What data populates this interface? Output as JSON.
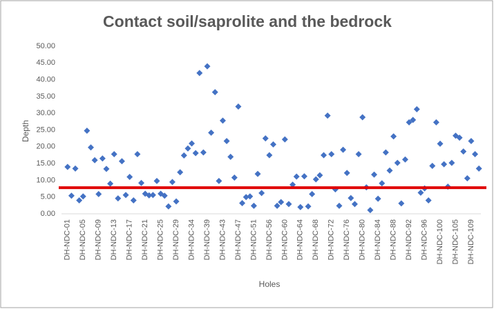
{
  "chart_data": {
    "type": "scatter",
    "title": "Contact soil/saprolite  and the bedrock",
    "x_label": "Holes",
    "y_label": "Depth",
    "categories": [
      "DH-NDC-01",
      null,
      null,
      null,
      "DH-NDC-05",
      null,
      null,
      null,
      "DH-NDC-09",
      null,
      null,
      null,
      "DH-NDC-13",
      null,
      null,
      null,
      "DH-NDC-17",
      null,
      null,
      null,
      "DH-NDC-21",
      null,
      null,
      null,
      "DH-NDC-25",
      null,
      null,
      null,
      "DH-NDC-29",
      null,
      null,
      null,
      "DH-NDC-34",
      null,
      null,
      null,
      "DH-NDC-39",
      null,
      null,
      null,
      "DH-NDC-43",
      null,
      null,
      null,
      "DH-NDC-47",
      null,
      null,
      null,
      "DH-NDC-51",
      null,
      null,
      null,
      "DH-NDC-56",
      null,
      null,
      null,
      "DH-NDC-60",
      null,
      null,
      null,
      "DH-NDC-64",
      null,
      null,
      null,
      "DH-NDC-68",
      null,
      null,
      null,
      "DH-NDC-72",
      null,
      null,
      null,
      "DH-NDC-76",
      null,
      null,
      null,
      "DH-NDC-80",
      null,
      null,
      null,
      "DH-NDC-84",
      null,
      null,
      null,
      "DH-NDC-88",
      null,
      null,
      null,
      "DH-NDC-92",
      null,
      null,
      null,
      "DH-NDC-96",
      null,
      null,
      null,
      "DH-NDC-100",
      null,
      null,
      null,
      "DH-NDC-105",
      null,
      null,
      null,
      "DH-NDC-109",
      null,
      null
    ],
    "values": [
      14.0,
      5.4,
      13.5,
      4.0,
      5.2,
      24.8,
      19.8,
      16.0,
      5.9,
      16.5,
      13.4,
      9.0,
      17.8,
      4.6,
      15.7,
      5.6,
      11.0,
      4.0,
      17.8,
      9.2,
      6.0,
      5.5,
      5.6,
      9.8,
      6.0,
      5.4,
      2.2,
      9.5,
      3.7,
      12.4,
      17.4,
      19.5,
      21.0,
      18.1,
      42.0,
      18.3,
      44.0,
      24.2,
      36.3,
      9.8,
      27.8,
      21.7,
      17.0,
      10.8,
      32.0,
      3.2,
      5.0,
      5.2,
      2.4,
      11.9,
      6.2,
      22.5,
      17.5,
      20.7,
      2.4,
      3.5,
      22.2,
      2.9,
      8.7,
      11.1,
      2.0,
      11.2,
      2.2,
      5.9,
      10.3,
      11.5,
      17.5,
      29.3,
      17.8,
      7.3,
      2.4,
      19.1,
      12.2,
      4.7,
      2.9,
      17.8,
      28.8,
      7.9,
      1.1,
      11.7,
      4.5,
      9.1,
      18.3,
      12.9,
      23.1,
      15.2,
      3.1,
      16.2,
      27.3,
      28.0,
      31.2,
      6.3,
      7.6,
      4.0,
      14.3,
      27.3,
      20.9,
      14.8,
      8.1,
      15.2,
      23.3,
      22.7,
      18.6,
      10.6,
      21.7,
      17.8,
      13.5
    ],
    "color": "#4472c4",
    "threshold": 7.8,
    "threshold_color": "#e00000",
    "ylim": [
      0,
      50
    ],
    "yticks": [
      {
        "value": 0,
        "label": "0.00"
      },
      {
        "value": 5,
        "label": "5.00"
      },
      {
        "value": 10,
        "label": "10.00"
      },
      {
        "value": 15,
        "label": "15.00"
      },
      {
        "value": 20,
        "label": "20.00"
      },
      {
        "value": 25,
        "label": "25.00"
      },
      {
        "value": 30,
        "label": "30.00"
      },
      {
        "value": 35,
        "label": "35.00"
      },
      {
        "value": 40,
        "label": "40.00"
      },
      {
        "value": 45,
        "label": "45.00"
      },
      {
        "value": 50,
        "label": "50.00"
      }
    ],
    "grid": false
  }
}
